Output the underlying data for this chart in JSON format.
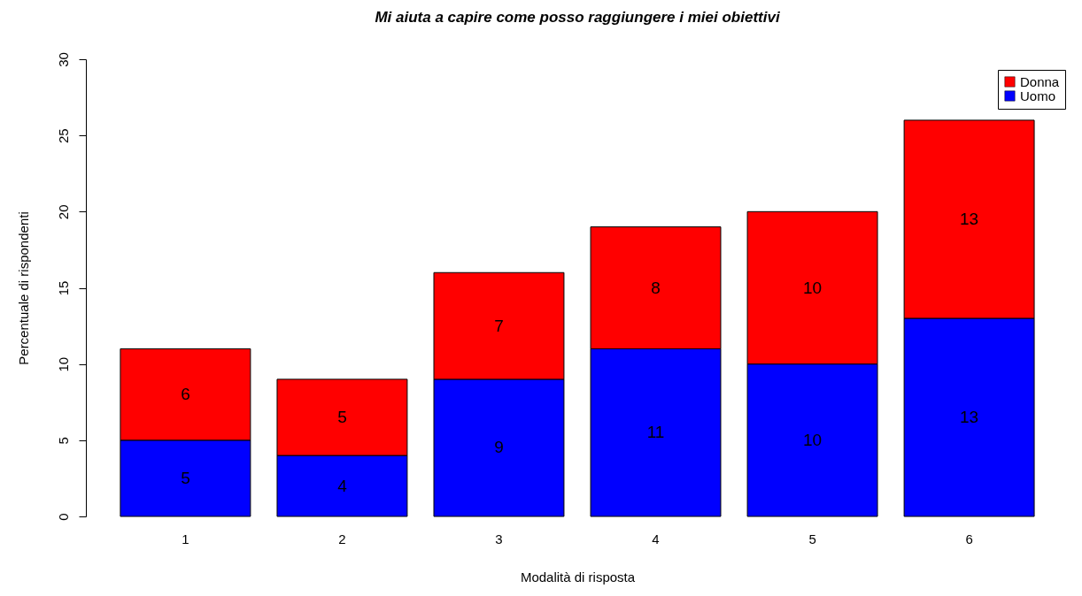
{
  "chart_data": {
    "type": "bar",
    "title": "Mi aiuta a capire come posso raggiungere i miei obiettivi",
    "xlabel": "Modalità di risposta",
    "ylabel": "Percentuale di rispondenti",
    "categories": [
      "1",
      "2",
      "3",
      "4",
      "5",
      "6"
    ],
    "stacked": true,
    "series": [
      {
        "name": "Uomo",
        "color": "#0000ff",
        "values": [
          5,
          4,
          9,
          11,
          10,
          13
        ]
      },
      {
        "name": "Donna",
        "color": "#ff0000",
        "values": [
          6,
          5,
          7,
          8,
          10,
          13
        ]
      }
    ],
    "ylim": [
      0,
      30
    ],
    "yticks": [
      0,
      5,
      10,
      15,
      20,
      25,
      30
    ],
    "data_labels": true,
    "legend": "top right",
    "grid": false
  }
}
